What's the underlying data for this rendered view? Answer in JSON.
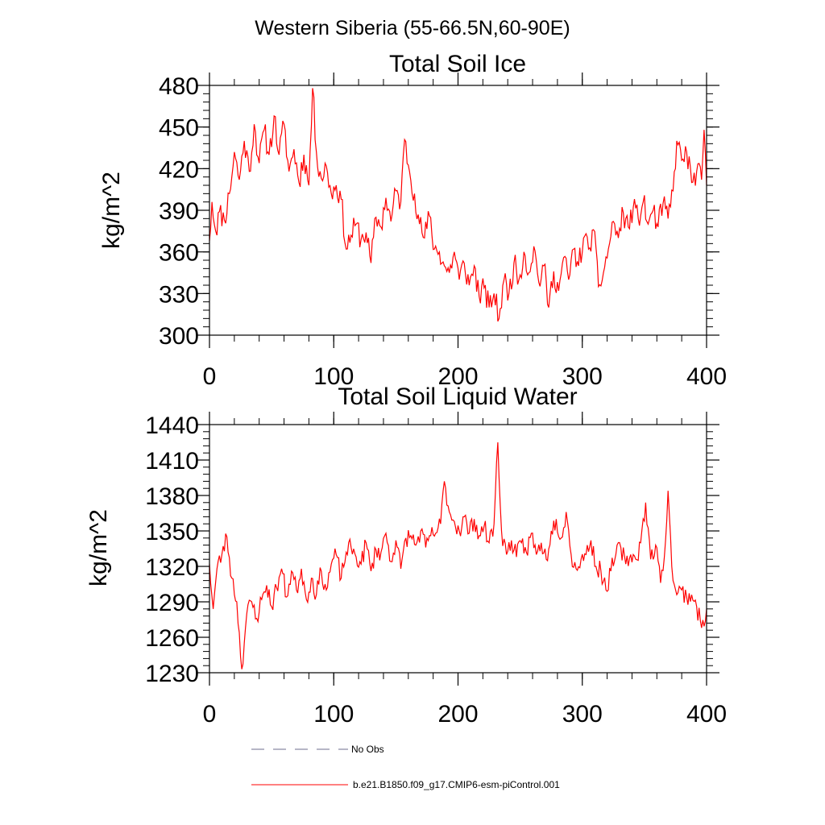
{
  "figure_title": "Western Siberia (55-66.5N,60-90E)",
  "colors": {
    "series": "#ff0000",
    "obs": "#6c6c8c",
    "axis": "#000000"
  },
  "legend": {
    "obs_label": "No Obs",
    "model_label": "b.e21.B1850.f09_g17.CMIP6-esm-piControl.001"
  },
  "chart_data": [
    {
      "type": "line",
      "title": "Total Soil Ice",
      "xlabel": "",
      "ylabel": "kg/m^2",
      "xlim": [
        0,
        400
      ],
      "ylim": [
        300,
        480
      ],
      "xticks": [
        0,
        100,
        200,
        300,
        400
      ],
      "yticks": [
        300,
        330,
        360,
        390,
        420,
        450,
        480
      ],
      "minor_x_step": 20,
      "minor_y_step": 6,
      "anchors": [
        [
          0,
          368
        ],
        [
          2,
          396
        ],
        [
          5,
          375
        ],
        [
          8,
          389
        ],
        [
          12,
          383
        ],
        [
          16,
          402
        ],
        [
          20,
          432
        ],
        [
          24,
          412
        ],
        [
          28,
          440
        ],
        [
          32,
          418
        ],
        [
          36,
          452
        ],
        [
          40,
          424
        ],
        [
          44,
          448
        ],
        [
          48,
          430
        ],
        [
          52,
          458
        ],
        [
          56,
          430
        ],
        [
          60,
          452
        ],
        [
          64,
          418
        ],
        [
          68,
          434
        ],
        [
          72,
          410
        ],
        [
          76,
          430
        ],
        [
          80,
          408
        ],
        [
          83,
          478
        ],
        [
          86,
          432
        ],
        [
          90,
          413
        ],
        [
          94,
          422
        ],
        [
          98,
          402
        ],
        [
          102,
          408
        ],
        [
          106,
          398
        ],
        [
          110,
          362
        ],
        [
          114,
          372
        ],
        [
          118,
          380
        ],
        [
          122,
          369
        ],
        [
          126,
          374
        ],
        [
          130,
          352
        ],
        [
          134,
          385
        ],
        [
          138,
          378
        ],
        [
          142,
          399
        ],
        [
          146,
          382
        ],
        [
          150,
          404
        ],
        [
          154,
          396
        ],
        [
          157,
          441
        ],
        [
          161,
          418
        ],
        [
          165,
          402
        ],
        [
          169,
          380
        ],
        [
          173,
          370
        ],
        [
          177,
          386
        ],
        [
          181,
          362
        ],
        [
          185,
          360
        ],
        [
          189,
          350
        ],
        [
          193,
          345
        ],
        [
          197,
          360
        ],
        [
          201,
          340
        ],
        [
          205,
          352
        ],
        [
          209,
          336
        ],
        [
          213,
          350
        ],
        [
          217,
          328
        ],
        [
          221,
          334
        ],
        [
          225,
          320
        ],
        [
          229,
          330
        ],
        [
          233,
          312
        ],
        [
          237,
          340
        ],
        [
          241,
          330
        ],
        [
          245,
          352
        ],
        [
          249,
          340
        ],
        [
          253,
          360
        ],
        [
          257,
          345
        ],
        [
          261,
          364
        ],
        [
          265,
          338
        ],
        [
          269,
          350
        ],
        [
          273,
          320
        ],
        [
          277,
          346
        ],
        [
          281,
          332
        ],
        [
          285,
          356
        ],
        [
          289,
          340
        ],
        [
          293,
          362
        ],
        [
          297,
          350
        ],
        [
          301,
          370
        ],
        [
          305,
          362
        ],
        [
          309,
          376
        ],
        [
          313,
          335
        ],
        [
          317,
          345
        ],
        [
          321,
          362
        ],
        [
          325,
          382
        ],
        [
          329,
          370
        ],
        [
          333,
          388
        ],
        [
          337,
          378
        ],
        [
          341,
          392
        ],
        [
          345,
          384
        ],
        [
          349,
          396
        ],
        [
          353,
          380
        ],
        [
          357,
          390
        ],
        [
          361,
          378
        ],
        [
          365,
          395
        ],
        [
          369,
          384
        ],
        [
          373,
          404
        ],
        [
          376,
          440
        ],
        [
          380,
          426
        ],
        [
          384,
          432
        ],
        [
          388,
          410
        ],
        [
          392,
          418
        ],
        [
          396,
          412
        ],
        [
          398,
          448
        ],
        [
          400,
          408
        ]
      ],
      "noise_amp": 18,
      "seed": 11
    },
    {
      "type": "line",
      "title": "Total Soil Liquid Water",
      "xlabel": "",
      "ylabel": "kg/m^2",
      "xlim": [
        0,
        400
      ],
      "ylim": [
        1230,
        1440
      ],
      "xticks": [
        0,
        100,
        200,
        300,
        400
      ],
      "yticks": [
        1230,
        1260,
        1290,
        1320,
        1350,
        1380,
        1410,
        1440
      ],
      "minor_x_step": 20,
      "minor_y_step": 6,
      "anchors": [
        [
          0,
          1322
        ],
        [
          3,
          1284
        ],
        [
          6,
          1318
        ],
        [
          10,
          1330
        ],
        [
          14,
          1345
        ],
        [
          18,
          1310
        ],
        [
          22,
          1290
        ],
        [
          26,
          1233
        ],
        [
          30,
          1280
        ],
        [
          34,
          1290
        ],
        [
          38,
          1276
        ],
        [
          42,
          1292
        ],
        [
          46,
          1304
        ],
        [
          50,
          1286
        ],
        [
          54,
          1302
        ],
        [
          58,
          1318
        ],
        [
          62,
          1294
        ],
        [
          66,
          1316
        ],
        [
          70,
          1300
        ],
        [
          74,
          1318
        ],
        [
          78,
          1292
        ],
        [
          82,
          1310
        ],
        [
          86,
          1296
        ],
        [
          90,
          1316
        ],
        [
          94,
          1300
        ],
        [
          98,
          1322
        ],
        [
          102,
          1330
        ],
        [
          106,
          1310
        ],
        [
          110,
          1332
        ],
        [
          114,
          1336
        ],
        [
          118,
          1328
        ],
        [
          122,
          1322
        ],
        [
          126,
          1340
        ],
        [
          130,
          1316
        ],
        [
          134,
          1334
        ],
        [
          138,
          1332
        ],
        [
          142,
          1348
        ],
        [
          146,
          1324
        ],
        [
          150,
          1342
        ],
        [
          154,
          1318
        ],
        [
          158,
          1344
        ],
        [
          162,
          1346
        ],
        [
          166,
          1338
        ],
        [
          170,
          1350
        ],
        [
          174,
          1336
        ],
        [
          178,
          1346
        ],
        [
          182,
          1348
        ],
        [
          186,
          1356
        ],
        [
          189,
          1392
        ],
        [
          193,
          1366
        ],
        [
          197,
          1358
        ],
        [
          201,
          1350
        ],
        [
          205,
          1362
        ],
        [
          209,
          1348
        ],
        [
          213,
          1360
        ],
        [
          217,
          1346
        ],
        [
          221,
          1354
        ],
        [
          225,
          1340
        ],
        [
          229,
          1356
        ],
        [
          232,
          1425
        ],
        [
          235,
          1350
        ],
        [
          239,
          1330
        ],
        [
          243,
          1342
        ],
        [
          247,
          1328
        ],
        [
          251,
          1340
        ],
        [
          255,
          1332
        ],
        [
          259,
          1348
        ],
        [
          263,
          1330
        ],
        [
          267,
          1340
        ],
        [
          271,
          1326
        ],
        [
          275,
          1350
        ],
        [
          279,
          1360
        ],
        [
          283,
          1344
        ],
        [
          287,
          1366
        ],
        [
          291,
          1330
        ],
        [
          295,
          1318
        ],
        [
          299,
          1326
        ],
        [
          303,
          1330
        ],
        [
          307,
          1342
        ],
        [
          311,
          1320
        ],
        [
          315,
          1316
        ],
        [
          319,
          1300
        ],
        [
          323,
          1316
        ],
        [
          327,
          1330
        ],
        [
          331,
          1336
        ],
        [
          335,
          1322
        ],
        [
          339,
          1330
        ],
        [
          343,
          1326
        ],
        [
          347,
          1340
        ],
        [
          351,
          1374
        ],
        [
          355,
          1326
        ],
        [
          359,
          1338
        ],
        [
          363,
          1306
        ],
        [
          367,
          1342
        ],
        [
          369,
          1384
        ],
        [
          372,
          1320
        ],
        [
          376,
          1296
        ],
        [
          380,
          1300
        ],
        [
          384,
          1294
        ],
        [
          388,
          1296
        ],
        [
          392,
          1286
        ],
        [
          396,
          1268
        ],
        [
          400,
          1284
        ]
      ],
      "noise_amp": 16,
      "seed": 23
    }
  ]
}
